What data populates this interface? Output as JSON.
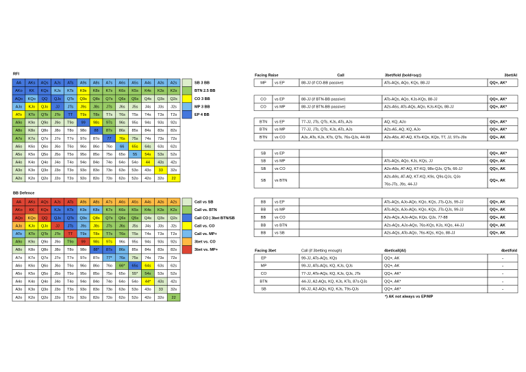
{
  "rfi": {
    "title": "RFI",
    "legend": [
      {
        "label": "SB 3 BB",
        "color": "#dec"
      },
      {
        "label": "BTN 2.5 BB",
        "color": "#9c6"
      },
      {
        "label": "CO 3 BB",
        "color": "#ff0"
      },
      {
        "label": "MP 3 BB",
        "color": "#7be"
      },
      {
        "label": "EP 4 BB",
        "color": "#47d"
      }
    ],
    "cells": [
      [
        "AA",
        "AKs",
        "AQs",
        "AJs",
        "ATs",
        "A9s",
        "A8s",
        "A7s",
        "A6s",
        "A5s",
        "A4s",
        "A3s",
        "A2s"
      ],
      [
        "AKo",
        "KK",
        "KQs",
        "KJs",
        "KTs",
        "K9s",
        "K8s",
        "K7s",
        "K6s",
        "K5s",
        "K4s",
        "K3s",
        "K2s"
      ],
      [
        "AQo",
        "KQo",
        "QQ",
        "QJs",
        "QTs",
        "Q9s",
        "Q8s",
        "Q7s",
        "Q6s",
        "Q5s",
        "Q4s",
        "Q3s",
        "Q2s"
      ],
      [
        "AJo",
        "KJo",
        "QJo",
        "JJ",
        "JTs",
        "J9s",
        "J8s",
        "J7s",
        "J6s",
        "J5s",
        "J4s",
        "J3s",
        "J2s"
      ],
      [
        "ATo",
        "KTo",
        "QTo",
        "JTo",
        "TT",
        "T9s",
        "T8s",
        "T7s",
        "T6s",
        "T5s",
        "T4s",
        "T3s",
        "T2s"
      ],
      [
        "A9o",
        "K9o",
        "Q9o",
        "J9o",
        "T9o",
        "99",
        "98s",
        "97s",
        "96s",
        "95s",
        "94s",
        "93s",
        "92s"
      ],
      [
        "A8o",
        "K8o",
        "Q8o",
        "J8o",
        "T8o",
        "98o",
        "88",
        "87s",
        "86s",
        "85s",
        "84s",
        "83s",
        "82s"
      ],
      [
        "A7o",
        "K7o",
        "Q7o",
        "J7o",
        "T7o",
        "97o",
        "87o",
        "77",
        "76s",
        "75s",
        "74s",
        "73s",
        "72s"
      ],
      [
        "A6o",
        "K6o",
        "Q6o",
        "J6o",
        "T6o",
        "96o",
        "86o",
        "76o",
        "66",
        "65s",
        "64s",
        "63s",
        "62s"
      ],
      [
        "A5o",
        "K5o",
        "Q5o",
        "J5o",
        "T5o",
        "95o",
        "85o",
        "75o",
        "65o",
        "55",
        "54s",
        "53s",
        "52s"
      ],
      [
        "A4o",
        "K4o",
        "Q4o",
        "J4o",
        "T4o",
        "94o",
        "84o",
        "74o",
        "64o",
        "54o",
        "44",
        "43s",
        "42s"
      ],
      [
        "A3o",
        "K3o",
        "Q3o",
        "J3o",
        "T3o",
        "93o",
        "83o",
        "73o",
        "63o",
        "53o",
        "43o",
        "33",
        "32s"
      ],
      [
        "A2o",
        "K2o",
        "Q2o",
        "J2o",
        "T2o",
        "92o",
        "82o",
        "72o",
        "62o",
        "52o",
        "42o",
        "32o",
        "22"
      ]
    ],
    "colors": [
      [
        "#47d",
        "#47d",
        "#47d",
        "#47d",
        "#47d",
        "#7be",
        "#7be",
        "#7be",
        "#7be",
        "#7be",
        "#7be",
        "#7be",
        "#7be"
      ],
      [
        "#47d",
        "#47d",
        "#47d",
        "#7be",
        "#7be",
        "#ff0",
        "#9c6",
        "#9c6",
        "#9c6",
        "#9c6",
        "#9c6",
        "#9c6",
        "#9c6"
      ],
      [
        "#47d",
        "#7be",
        "#47d",
        "#47d",
        "#7be",
        "#ff0",
        "#9c6",
        "#9c6",
        "#9c6",
        "#9c6",
        "#dec",
        "#dec",
        "#dec"
      ],
      [
        "#7be",
        "#ff0",
        "#ff0",
        "#47d",
        "#7be",
        "#ff0",
        "#9c6",
        "#9c6",
        "#dec",
        "#dec",
        "#fff",
        "#fff",
        "#fff"
      ],
      [
        "#ff0",
        "#9c6",
        "#9c6",
        "#9c6",
        "#47d",
        "#ff0",
        "#9c6",
        "#dec",
        "#dec",
        "#fff",
        "#fff",
        "#fff",
        "#fff"
      ],
      [
        "#9c6",
        "#dec",
        "#dec",
        "#dec",
        "#dec",
        "#47d",
        "#ff0",
        "#9c6",
        "#dec",
        "#fff",
        "#fff",
        "#fff",
        "#fff"
      ],
      [
        "#9c6",
        "#dec",
        "#fff",
        "#fff",
        "#fff",
        "#fff",
        "#47d",
        "#9c6",
        "#dec",
        "#fff",
        "#fff",
        "#fff",
        "#fff"
      ],
      [
        "#9c6",
        "#dec",
        "#fff",
        "#fff",
        "#fff",
        "#fff",
        "#fff",
        "#47d",
        "#ff0",
        "#dec",
        "#fff",
        "#fff",
        "#fff"
      ],
      [
        "#dec",
        "#fff",
        "#fff",
        "#fff",
        "#fff",
        "#fff",
        "#fff",
        "#fff",
        "#7be",
        "#ff0",
        "#dec",
        "#fff",
        "#fff"
      ],
      [
        "#dec",
        "#fff",
        "#fff",
        "#fff",
        "#fff",
        "#fff",
        "#fff",
        "#fff",
        "#fff",
        "#7be",
        "#ff0",
        "#dec",
        "#fff"
      ],
      [
        "#dec",
        "#fff",
        "#fff",
        "#fff",
        "#fff",
        "#fff",
        "#fff",
        "#fff",
        "#fff",
        "#fff",
        "#ff0",
        "#dec",
        "#fff"
      ],
      [
        "#dec",
        "#fff",
        "#fff",
        "#fff",
        "#fff",
        "#fff",
        "#fff",
        "#fff",
        "#fff",
        "#fff",
        "#fff",
        "#ff0",
        "#fff"
      ],
      [
        "#dec",
        "#fff",
        "#fff",
        "#fff",
        "#fff",
        "#fff",
        "#fff",
        "#fff",
        "#fff",
        "#fff",
        "#fff",
        "#fff",
        "#ff0"
      ]
    ]
  },
  "bb_defence": {
    "title": "BB Defence",
    "legend": [
      {
        "label": "Call vs SB",
        "color": "#dec"
      },
      {
        "label": "Call vs. BTN",
        "color": "#9c6"
      },
      {
        "label": "Call CO | 3bet BTN/SB",
        "color": "#47d"
      },
      {
        "label": "Call vs. CO",
        "color": "#ff0"
      },
      {
        "label": "Call vs. MP+",
        "color": "#7be"
      },
      {
        "label": "3bet vs. CO",
        "color": "#fb4"
      },
      {
        "label": "3bet vs. MP+",
        "color": "#d43"
      }
    ],
    "cells": [
      [
        "AA",
        "AKs",
        "AQs",
        "AJs",
        "ATs",
        "A9s",
        "A8s",
        "A7s",
        "A6s",
        "A5s",
        "A4s",
        "A3s",
        "A2s"
      ],
      [
        "AKo",
        "KK",
        "KQs",
        "KJs",
        "KTs",
        "K9s",
        "K8s",
        "K7s",
        "K6s",
        "K5s",
        "K4s",
        "K3s",
        "K2s"
      ],
      [
        "AQo",
        "KQo",
        "QQ",
        "QJs",
        "QTs",
        "Q9s",
        "Q8s",
        "Q7s",
        "Q6s",
        "Q5s",
        "Q4s",
        "Q3s",
        "Q2s"
      ],
      [
        "AJo",
        "KJo",
        "QJo",
        "JJ",
        "JTs",
        "J9s",
        "J8s",
        "J7s",
        "J6s",
        "J5s",
        "J4s",
        "J3s",
        "J2s"
      ],
      [
        "ATo",
        "KTo",
        "QTo",
        "JTo",
        "TT",
        "T9s",
        "T8s",
        "T7s",
        "T6s",
        "T5s",
        "T4s",
        "T3s",
        "T2s"
      ],
      [
        "A9o",
        "K9o",
        "Q9o",
        "J9o",
        "T9o",
        "99",
        "98s",
        "97s",
        "96s",
        "95s",
        "94s",
        "93s",
        "92s"
      ],
      [
        "A8o",
        "K8o",
        "Q8o",
        "J8o",
        "T8o",
        "98o",
        "88*",
        "87s",
        "86s",
        "85s",
        "84s",
        "83s",
        "82s"
      ],
      [
        "A7o",
        "K7o",
        "Q7o",
        "J7o",
        "T7o",
        "97o",
        "87o",
        "77*",
        "76s",
        "75s",
        "74s",
        "73s",
        "72s"
      ],
      [
        "A6o",
        "K6o",
        "Q6o",
        "J6o",
        "T6o",
        "96o",
        "86o",
        "76o",
        "66*",
        "65s",
        "64s",
        "63s",
        "62s"
      ],
      [
        "A5o",
        "K5o",
        "Q5o",
        "J5o",
        "T5o",
        "95o",
        "85o",
        "75o",
        "65o",
        "55*",
        "54s",
        "53s",
        "52s"
      ],
      [
        "A4o",
        "K4o",
        "Q4o",
        "J4o",
        "T4o",
        "94o",
        "84o",
        "74o",
        "64o",
        "54o",
        "44*",
        "43s",
        "42s"
      ],
      [
        "A3o",
        "K3o",
        "Q3o",
        "J3o",
        "T3o",
        "93o",
        "83o",
        "73o",
        "63o",
        "53o",
        "43o",
        "33",
        "32s"
      ],
      [
        "A2o",
        "K2o",
        "Q2o",
        "J2o",
        "T2o",
        "92o",
        "82o",
        "72o",
        "62o",
        "52o",
        "42o",
        "32o",
        "22"
      ]
    ],
    "colors": [
      [
        "#d43",
        "#d43",
        "#d43",
        "#d43",
        "#d43",
        "#fb4",
        "#fb4",
        "#fb4",
        "#fb4",
        "#fb4",
        "#fb4",
        "#fb4",
        "#fb4"
      ],
      [
        "#d43",
        "#d43",
        "#d43",
        "#47d",
        "#47d",
        "#7be",
        "#7be",
        "#9c6",
        "#9c6",
        "#9c6",
        "#9c6",
        "#9c6",
        "#9c6"
      ],
      [
        "#d43",
        "#fb4",
        "#d43",
        "#47d",
        "#47d",
        "#7be",
        "#ff0",
        "#9c6",
        "#9c6",
        "#9c6",
        "#dec",
        "#dec",
        "#dec"
      ],
      [
        "#fb4",
        "#ff0",
        "#ff0",
        "#d43",
        "#47d",
        "#7be",
        "#ff0",
        "#9c6",
        "#9c6",
        "#dec",
        "#fff",
        "#fff",
        "#fff"
      ],
      [
        "#7be",
        "#9c6",
        "#9c6",
        "#9c6",
        "#d43",
        "#7be",
        "#ff0",
        "#9c6",
        "#9c6",
        "#dec",
        "#fff",
        "#fff",
        "#fff"
      ],
      [
        "#9c6",
        "#dec",
        "#fff",
        "#fff",
        "#9c6",
        "#d43",
        "#ff0",
        "#ff0",
        "#fff",
        "#fff",
        "#fff",
        "#fff",
        "#fff"
      ],
      [
        "#dec",
        "#fff",
        "#fff",
        "#fff",
        "#fff",
        "#fff",
        "#47d",
        "#47d",
        "#7be",
        "#fff",
        "#fff",
        "#fff",
        "#fff"
      ],
      [
        "#fff",
        "#fff",
        "#fff",
        "#fff",
        "#fff",
        "#fff",
        "#fff",
        "#7be",
        "#7be",
        "#dec",
        "#fff",
        "#fff",
        "#fff"
      ],
      [
        "#fff",
        "#fff",
        "#fff",
        "#fff",
        "#fff",
        "#fff",
        "#fff",
        "#fff",
        "#9c6",
        "#47d",
        "#ff0",
        "#fff",
        "#fff"
      ],
      [
        "#fff",
        "#fff",
        "#fff",
        "#fff",
        "#fff",
        "#fff",
        "#fff",
        "#fff",
        "#fff",
        "#dec",
        "#9c6",
        "#fff",
        "#fff"
      ],
      [
        "#fff",
        "#fff",
        "#fff",
        "#fff",
        "#fff",
        "#fff",
        "#fff",
        "#fff",
        "#fff",
        "#fff",
        "#ff0",
        "#dec",
        "#fff"
      ],
      [
        "#fff",
        "#fff",
        "#fff",
        "#fff",
        "#fff",
        "#fff",
        "#fff",
        "#fff",
        "#fff",
        "#fff",
        "#fff",
        "#dec",
        "#fff"
      ],
      [
        "#fff",
        "#fff",
        "#fff",
        "#fff",
        "#fff",
        "#fff",
        "#fff",
        "#fff",
        "#fff",
        "#fff",
        "#fff",
        "#fff",
        "#9c6"
      ]
    ]
  },
  "facing_raise": {
    "headers": [
      "Facing Raise",
      "Call",
      "3bet/fold (bold=sqz)",
      "3bet/AI"
    ],
    "groups": [
      [
        [
          "MP",
          "vs EP",
          "88-JJ (if CO-BB passive)",
          "ATs-AQs, AQo, KQs, 88-JJ",
          "QQ+, AK*"
        ]
      ],
      [
        [
          "CO",
          "vs EP",
          "88-JJ (if BTN-BB passive)",
          "ATs-AQs, AQo, KJs-KQs, 88-JJ",
          "QQ+, AK*"
        ],
        [
          "CO",
          "vs MP",
          "88-JJ (if BTN-BB passive)",
          "A2s-A5s, ATs-AQs, AQo, KJs-KQs, 88-JJ",
          "QQ+, AK*"
        ]
      ],
      [
        [
          "BTN",
          "vs EP",
          "77-JJ, JTs, QTs, KJs, ATs, AJs",
          "AQ, KQ, AJo",
          "QQ+, AK*"
        ],
        [
          "BTN",
          "vs MP",
          "77-JJ, JTs, QTs, KJs, ATs, AJs",
          "A2s-A5, AQ, KQ, AJo",
          "QQ+, AK*"
        ],
        [
          "BTN",
          "vs CO",
          "AJs, ATs, KJs, KTs, QTs, 76s-QJs, 44-99",
          "A2s-A5s, AT-AQ, KTs-KQs, KQo, TT, JJ, 97s-J9s",
          "QQ+, AK"
        ]
      ],
      [
        [
          "SB",
          "vs EP",
          null,
          null,
          "QQ+, AK*"
        ],
        [
          "SB",
          "vs MP",
          null,
          "ATs-AQs, AQo, KJs, KQs, JJ",
          "QQ+, AK"
        ],
        [
          "SB",
          "vs CO",
          null,
          "A2s-A9s, AT-AQ, KT-KQ, 98s-QJs, QTs, 66-JJ",
          "QQ+, AK"
        ],
        [
          "SB",
          "vs BTN",
          null,
          [
            "A2s-A9s, AT-AQ, KT-KQ, K9s, Q9s-QJs, QJo",
            "76s-JTs, J9s, 44-JJ"
          ],
          "QQ+, AK"
        ]
      ],
      [
        [
          "BB",
          "vs EP",
          null,
          "ATs-AQs, AJo-AQo, KQo, KQs, JTs-QJs, 99-JJ",
          "QQ+, AK"
        ],
        [
          "BB",
          "vs MP",
          null,
          "ATs-AQs, AJo-AQo, KQo, KQs, JTs-QJs, 99-JJ",
          "QQ+, AK"
        ],
        [
          "BB",
          "vs CO",
          null,
          "A2s-AQs, AJo-AQo, KQo, QJs, 77-88",
          "QQ+, AK"
        ],
        [
          "BB",
          "vs BTN",
          null,
          "A2s-AQs, AJo-AQo, 76s-KQs, KJs, KQo, 44-JJ",
          "QQ+, AK"
        ],
        [
          "BB",
          "vs SB",
          null,
          "A2s-AQs, ATo-AQo, 76s-KQs, KQo, 88-JJ",
          "QQ+, AK"
        ]
      ]
    ]
  },
  "facing_3bet": {
    "headers": [
      "Facing 3bet",
      "Call (if 3betting enough)",
      "4bet/call(AI)",
      "4bet/fold"
    ],
    "rows": [
      [
        "EP",
        "99-JJ, ATs-AQs, KQs",
        "QQ+, AK",
        "-"
      ],
      [
        "MP",
        "99-JJ, ATs-AQs, KQ, KJs, QJs",
        "QQ+, AK",
        "-"
      ],
      [
        "CO",
        "77-JJ, ATs-AQs, KQ, KJs, QJs, JTs",
        "QQ+, AK*",
        "-"
      ],
      [
        "BTN",
        "44-JJ, A2-AQs, KQ, KJs, KTs, 87s-QJs",
        "QQ+, AK*",
        "-"
      ],
      [
        "SB",
        "66-JJ, A2-AQs, KQ, KJs, T9s-QJs",
        "QQ+, AK*",
        "-"
      ]
    ],
    "footnote": "*) AK not always vs EP/MP"
  }
}
